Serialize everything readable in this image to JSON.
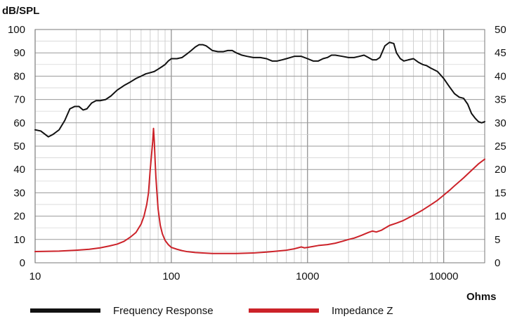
{
  "chart_data": {
    "type": "line",
    "xscale": "log",
    "xlim": [
      10,
      20000
    ],
    "ylim_left": [
      0,
      100
    ],
    "ylim_right": [
      0,
      50
    ],
    "ylabel_left": "dB/SPL",
    "ylabel_right": "Ohms",
    "grid": true,
    "x_tick_labels": [
      "10",
      "100",
      "1000",
      "10000"
    ],
    "y_left_tick_labels": [
      "0",
      "10",
      "20",
      "30",
      "40",
      "50",
      "60",
      "70",
      "80",
      "90",
      "100"
    ],
    "y_right_tick_labels": [
      "0",
      "5",
      "10",
      "15",
      "20",
      "25",
      "30",
      "35",
      "40",
      "45",
      "50"
    ],
    "legend_position": "bottom",
    "series": [
      {
        "name": "Frequency Response",
        "axis": "left",
        "color": "#111111",
        "x": [
          10,
          11,
          12.5,
          13.5,
          15,
          16.5,
          18,
          19.5,
          21,
          22.5,
          24,
          26,
          28,
          30,
          33,
          36,
          40,
          45,
          50,
          55,
          60,
          65,
          70,
          75,
          80,
          85,
          90,
          95,
          100,
          110,
          120,
          130,
          140,
          150,
          160,
          170,
          180,
          190,
          200,
          220,
          240,
          260,
          280,
          300,
          330,
          360,
          400,
          450,
          500,
          550,
          600,
          650,
          700,
          750,
          800,
          900,
          1000,
          1100,
          1200,
          1300,
          1400,
          1500,
          1600,
          1800,
          2000,
          2200,
          2400,
          2600,
          2800,
          3000,
          3200,
          3400,
          3700,
          4000,
          4300,
          4500,
          4800,
          5100,
          5500,
          6000,
          6500,
          7000,
          7500,
          8000,
          9000,
          10000,
          11000,
          12000,
          13000,
          14000,
          15000,
          16000,
          17000,
          18000,
          19000,
          20000
        ],
        "y": [
          57,
          56.5,
          54,
          55,
          57,
          61,
          66,
          67,
          67,
          65.5,
          66,
          68.5,
          69.5,
          69.5,
          70,
          71.5,
          74,
          76,
          77.5,
          79,
          80,
          81,
          81.5,
          82,
          83,
          84,
          85,
          86.5,
          87.5,
          87.5,
          88,
          89.5,
          91,
          92.5,
          93.5,
          93.5,
          93,
          92,
          91,
          90.5,
          90.5,
          91,
          91,
          90,
          89,
          88.5,
          88,
          88,
          87.5,
          86.5,
          86.5,
          87,
          87.5,
          88,
          88.5,
          88.5,
          87.5,
          86.5,
          86.5,
          87.5,
          88,
          89,
          89,
          88.5,
          88,
          88,
          88.5,
          89,
          88,
          87,
          87,
          88,
          93,
          94.5,
          94,
          90,
          87.5,
          86.5,
          87,
          87.5,
          86,
          85,
          84.5,
          83.5,
          82,
          79,
          75.5,
          72.5,
          71,
          70.5,
          68,
          64,
          62,
          60.5,
          60,
          60.5
        ]
      },
      {
        "name": "Impedance Z",
        "axis": "right",
        "color": "#cc2229",
        "x": [
          10,
          15,
          20,
          25,
          30,
          35,
          40,
          45,
          50,
          55,
          60,
          63,
          66,
          68,
          70,
          72,
          73,
          74,
          75,
          76,
          77,
          78,
          80,
          83,
          86,
          90,
          95,
          100,
          110,
          120,
          130,
          150,
          170,
          200,
          250,
          300,
          400,
          500,
          600,
          700,
          800,
          850,
          900,
          950,
          1000,
          1100,
          1200,
          1400,
          1600,
          1800,
          2000,
          2200,
          2500,
          2800,
          3000,
          3200,
          3500,
          4000,
          4500,
          5000,
          6000,
          7000,
          8000,
          9000,
          10000,
          11000,
          12000,
          14000,
          16000,
          18000,
          20000
        ],
        "y": [
          2.4,
          2.5,
          2.7,
          2.9,
          3.2,
          3.6,
          4,
          4.6,
          5.5,
          6.5,
          8.3,
          10,
          12.5,
          15,
          20,
          24,
          26,
          28.8,
          26,
          22,
          18.5,
          16,
          11.5,
          8,
          6.2,
          4.8,
          3.9,
          3.3,
          2.9,
          2.6,
          2.4,
          2.2,
          2.1,
          2.0,
          2.0,
          2.0,
          2.1,
          2.3,
          2.5,
          2.7,
          3.0,
          3.2,
          3.4,
          3.2,
          3.3,
          3.5,
          3.7,
          3.9,
          4.2,
          4.6,
          5.0,
          5.3,
          5.9,
          6.5,
          6.8,
          6.6,
          7.0,
          8.0,
          8.5,
          9.0,
          10.2,
          11.3,
          12.4,
          13.4,
          14.5,
          15.5,
          16.5,
          18.2,
          19.8,
          21.2,
          22.2
        ]
      }
    ]
  },
  "legend": {
    "series_1_label": "Frequency Response",
    "series_1_color": "#111111",
    "series_2_label": "Impedance Z",
    "series_2_color": "#cc2229"
  }
}
